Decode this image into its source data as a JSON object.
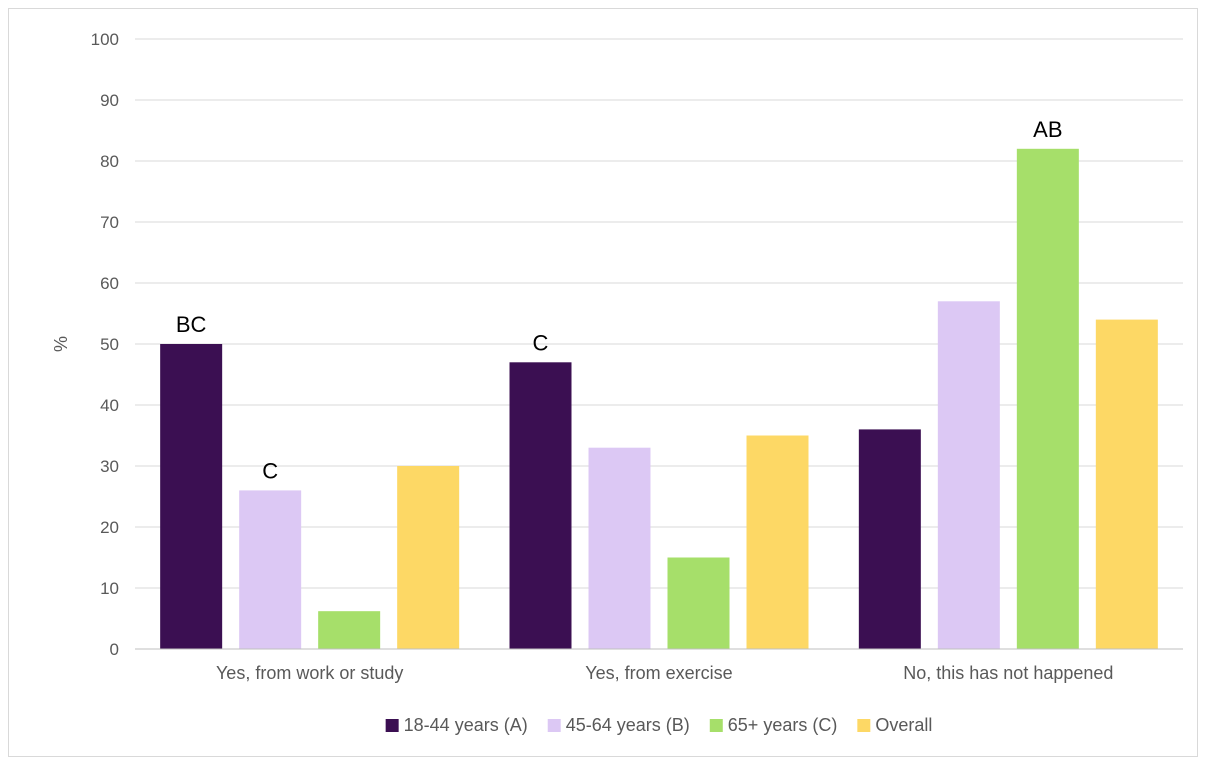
{
  "chart_data": {
    "type": "bar",
    "ylabel": "%",
    "xlabel": "",
    "ylim": [
      0,
      100
    ],
    "yticks": [
      0,
      10,
      20,
      30,
      40,
      50,
      60,
      70,
      80,
      90,
      100
    ],
    "grid": true,
    "legend_position": "bottom",
    "categories": [
      "Yes, from work or study",
      "Yes, from exercise",
      "No, this has not happened"
    ],
    "series": [
      {
        "name": "18-44 years (A)",
        "color": "#3b0f52",
        "values": [
          50,
          47,
          36
        ],
        "annotations": [
          "BC",
          "C",
          ""
        ]
      },
      {
        "name": "45-64 years (B)",
        "color": "#dcc8f4",
        "values": [
          26,
          33,
          57
        ],
        "annotations": [
          "C",
          "",
          ""
        ]
      },
      {
        "name": "65+ years (C)",
        "color": "#a6df6a",
        "values": [
          6.2,
          15,
          82
        ],
        "annotations": [
          "",
          "",
          "AB"
        ]
      },
      {
        "name": "Overall",
        "color": "#fdd865",
        "values": [
          30,
          35,
          54
        ],
        "annotations": [
          "",
          "",
          ""
        ]
      }
    ]
  }
}
